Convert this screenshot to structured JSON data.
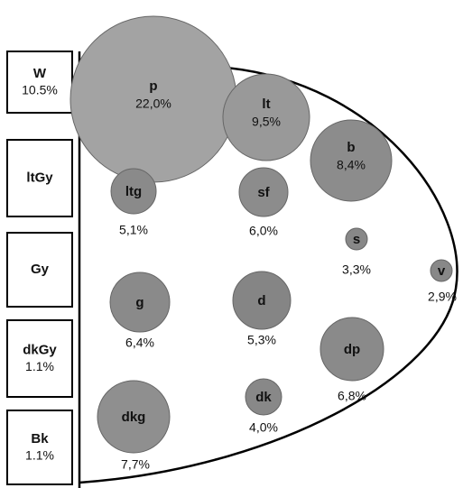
{
  "side_boxes": [
    {
      "label": "W",
      "percent": "10.5%"
    },
    {
      "label": "ltGy"
    },
    {
      "label": "Gy"
    },
    {
      "label": "dkGy",
      "percent": "1.1%"
    },
    {
      "label": "Bk",
      "percent": "1.1%"
    }
  ],
  "nodes": [
    {
      "label": "p",
      "percent": "22,0%"
    },
    {
      "label": "lt",
      "percent": "9,5%"
    },
    {
      "label": "b",
      "percent": "8,4%"
    },
    {
      "label": "ltg",
      "percent": "5,1%"
    },
    {
      "label": "sf",
      "percent": "6,0%"
    },
    {
      "label": "s",
      "percent": "3,3%"
    },
    {
      "label": "v",
      "percent": "2,9%"
    },
    {
      "label": "g",
      "percent": "6,4%"
    },
    {
      "label": "d",
      "percent": "5,3%"
    },
    {
      "label": "dp",
      "percent": "6,8%"
    },
    {
      "label": "dk",
      "percent": "4,0%"
    },
    {
      "label": "dkg",
      "percent": "7,7%"
    }
  ]
}
